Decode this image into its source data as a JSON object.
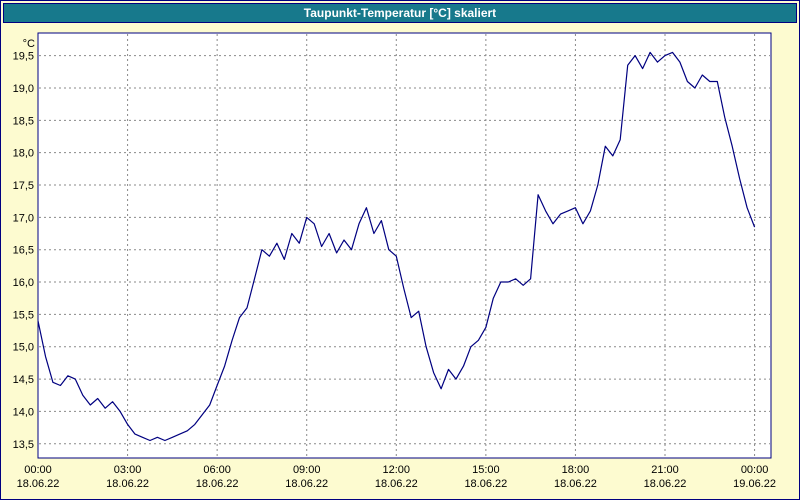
{
  "chart_data": {
    "type": "line",
    "title": "Taupunkt-Temperatur [°C] skaliert",
    "unit_label": "°C",
    "line_color": "#000080",
    "grid_color": "#8a8a8a",
    "border_color": "#000080",
    "plot_bg": "#ffffff",
    "page_bg": "#fdfbd0",
    "titlebar_bg": "#17798c",
    "grid": true,
    "legend": "none",
    "y_min": 13.28,
    "y_max": 19.85,
    "y_gridline_step": 0.5,
    "x_max_hours": 24.55,
    "y_ticks": [
      {
        "value": 19.5,
        "label": "19,5"
      },
      {
        "value": 19.0,
        "label": "19,0"
      },
      {
        "value": 18.5,
        "label": "18,5"
      },
      {
        "value": 18.0,
        "label": "18,0"
      },
      {
        "value": 17.5,
        "label": "17,5"
      },
      {
        "value": 17.0,
        "label": "17,0"
      },
      {
        "value": 16.5,
        "label": "16,5"
      },
      {
        "value": 16.0,
        "label": "16,0"
      },
      {
        "value": 15.5,
        "label": "15,5"
      },
      {
        "value": 15.0,
        "label": "15,0"
      },
      {
        "value": 14.5,
        "label": "14,5"
      },
      {
        "value": 14.0,
        "label": "14,0"
      },
      {
        "value": 13.5,
        "label": "13,5"
      }
    ],
    "x_ticks": [
      {
        "hour": 0,
        "time": "00:00",
        "date": "18.06.22"
      },
      {
        "hour": 3,
        "time": "03:00",
        "date": "18.06.22"
      },
      {
        "hour": 6,
        "time": "06:00",
        "date": "18.06.22"
      },
      {
        "hour": 9,
        "time": "09:00",
        "date": "18.06.22"
      },
      {
        "hour": 12,
        "time": "12:00",
        "date": "18.06.22"
      },
      {
        "hour": 15,
        "time": "15:00",
        "date": "18.06.22"
      },
      {
        "hour": 18,
        "time": "18:00",
        "date": "18.06.22"
      },
      {
        "hour": 21,
        "time": "21:00",
        "date": "18.06.22"
      },
      {
        "hour": 24,
        "time": "00:00",
        "date": "19.06.22"
      }
    ],
    "series": [
      {
        "name": "Taupunkt-Temperatur",
        "x_hours": [
          0,
          0.25,
          0.5,
          0.75,
          1,
          1.25,
          1.5,
          1.75,
          2,
          2.25,
          2.5,
          2.75,
          3,
          3.25,
          3.5,
          3.75,
          4,
          4.25,
          4.5,
          4.75,
          5,
          5.25,
          5.5,
          5.75,
          6,
          6.25,
          6.5,
          6.75,
          7,
          7.25,
          7.5,
          7.75,
          8,
          8.25,
          8.5,
          8.75,
          9,
          9.25,
          9.5,
          9.75,
          10,
          10.25,
          10.5,
          10.75,
          11,
          11.25,
          11.5,
          11.75,
          12,
          12.25,
          12.5,
          12.75,
          13,
          13.25,
          13.5,
          13.75,
          14,
          14.25,
          14.5,
          14.75,
          15,
          15.25,
          15.5,
          15.75,
          16,
          16.25,
          16.5,
          16.75,
          17,
          17.25,
          17.5,
          17.75,
          18,
          18.25,
          18.5,
          18.75,
          19,
          19.25,
          19.5,
          19.75,
          20,
          20.25,
          20.5,
          20.75,
          21,
          21.25,
          21.5,
          21.75,
          22,
          22.25,
          22.5,
          22.75,
          23,
          23.25,
          23.5,
          23.75,
          24
        ],
        "values": [
          15.4,
          14.85,
          14.45,
          14.4,
          14.55,
          14.5,
          14.25,
          14.1,
          14.2,
          14.05,
          14.15,
          14.0,
          13.8,
          13.65,
          13.6,
          13.55,
          13.6,
          13.55,
          13.6,
          13.65,
          13.7,
          13.8,
          13.95,
          14.1,
          14.4,
          14.7,
          15.1,
          15.45,
          15.6,
          16.05,
          16.5,
          16.4,
          16.6,
          16.35,
          16.75,
          16.6,
          17.0,
          16.9,
          16.55,
          16.75,
          16.45,
          16.65,
          16.5,
          16.9,
          17.15,
          16.75,
          16.95,
          16.5,
          16.4,
          15.9,
          15.45,
          15.55,
          15.0,
          14.6,
          14.35,
          14.65,
          14.5,
          14.7,
          15.0,
          15.1,
          15.3,
          15.75,
          16.0,
          16.0,
          16.05,
          15.95,
          16.05,
          17.35,
          17.1,
          16.9,
          17.05,
          17.1,
          17.15,
          16.9,
          17.1,
          17.5,
          18.1,
          17.95,
          18.2,
          19.35,
          19.5,
          19.3,
          19.55,
          19.4,
          19.5,
          19.55,
          19.4,
          19.1,
          19.0,
          19.2,
          19.1,
          19.1,
          18.55,
          18.1,
          17.6,
          17.15,
          16.85
        ]
      }
    ]
  }
}
